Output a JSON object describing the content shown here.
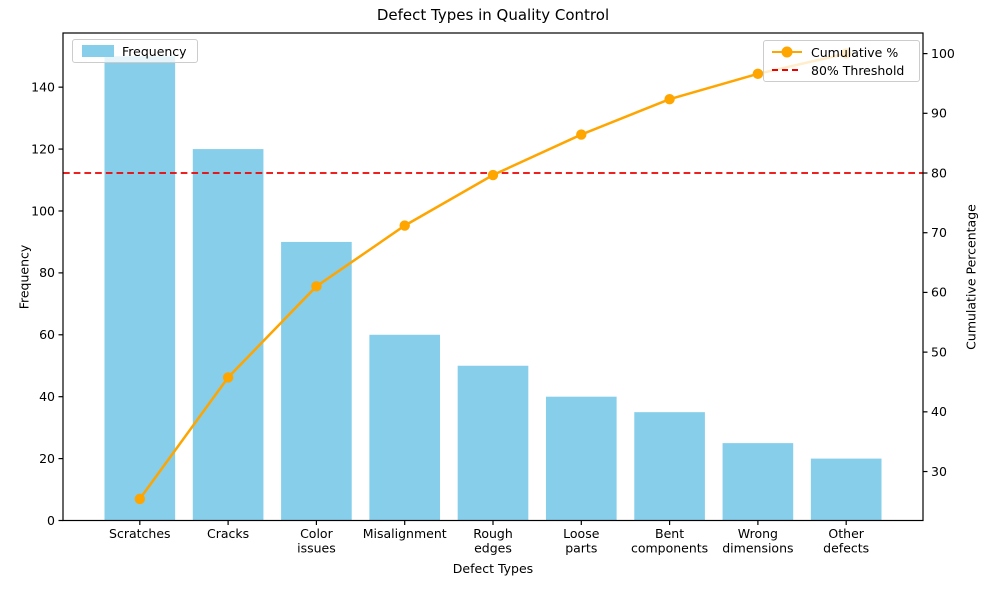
{
  "chart_data": {
    "type": "bar",
    "subtype": "pareto",
    "title": "Defect Types in Quality Control",
    "xlabel": "Defect Types",
    "ylabel_left": "Frequency",
    "ylabel_right": "Cumulative Percentage",
    "categories": [
      "Scratches",
      "Cracks",
      "Color\nissues",
      "Misalignment",
      "Rough\nedges",
      "Loose\nparts",
      "Bent\ncomponents",
      "Wrong\ndimensions",
      "Other\ndefects"
    ],
    "series": [
      {
        "name": "Frequency",
        "type": "bar",
        "axis": "left",
        "values": [
          150,
          120,
          90,
          60,
          50,
          40,
          35,
          25,
          20
        ]
      },
      {
        "name": "Cumulative %",
        "type": "line",
        "axis": "right",
        "values": [
          25.42,
          45.76,
          61.02,
          71.19,
          79.66,
          86.44,
          92.37,
          96.61,
          100.0
        ]
      }
    ],
    "threshold": {
      "label": "80% Threshold",
      "value": 80,
      "axis": "right",
      "style": "dashed"
    },
    "axes": {
      "left": {
        "ticks": [
          0,
          20,
          40,
          60,
          80,
          100,
          120,
          140
        ],
        "lim": [
          0,
          157.5
        ]
      },
      "right": {
        "ticks": [
          30,
          40,
          50,
          60,
          70,
          80,
          90,
          100
        ],
        "lim": [
          21.8,
          103.45
        ]
      }
    },
    "grid": false,
    "legend_left": {
      "items": [
        {
          "label": "Frequency"
        }
      ]
    },
    "legend_right": {
      "items": [
        {
          "label": "Cumulative %"
        },
        {
          "label": "80% Threshold"
        }
      ]
    },
    "colors": {
      "bar": "#87CEEB",
      "line": "#FFA500",
      "threshold": "#ED0000",
      "spine": "#000000",
      "text": "#000000"
    }
  }
}
